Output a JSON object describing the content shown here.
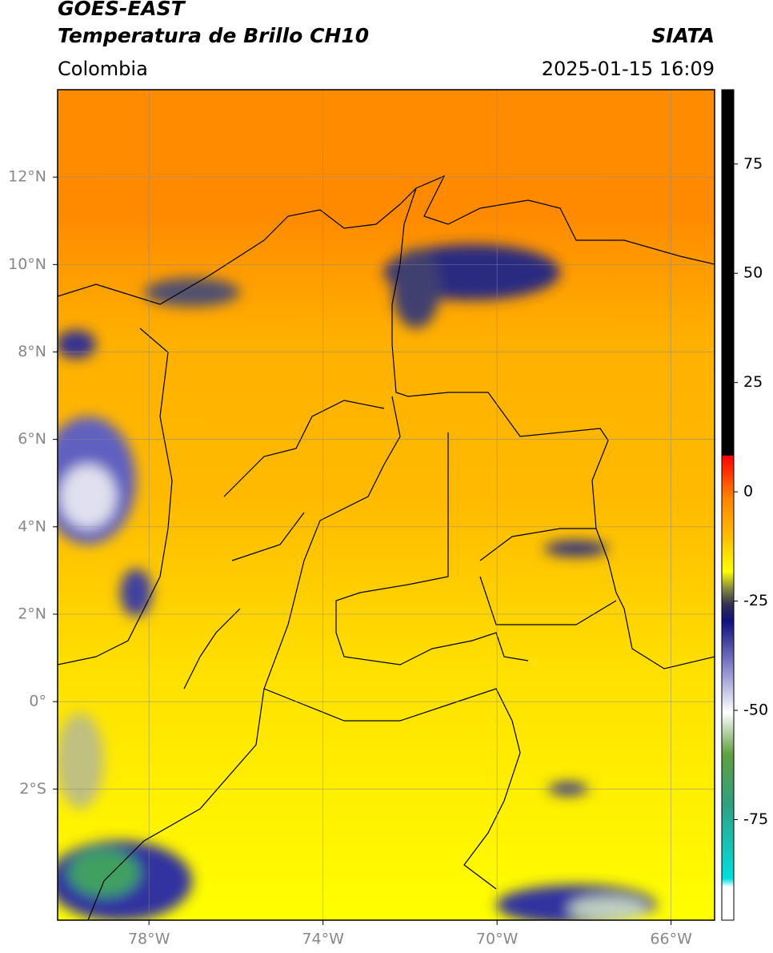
{
  "header": {
    "title": "GOES-EAST",
    "subtitle": "Temperatura de Brillo CH10",
    "source": "SIATA",
    "region": "Colombia",
    "timestamp": "2025-01-15 16:09"
  },
  "map": {
    "xlim": [
      -80.1,
      -65
    ],
    "ylim": [
      -5,
      14
    ],
    "xticks": [
      {
        "value": -78,
        "label": "78°W"
      },
      {
        "value": -74,
        "label": "74°W"
      },
      {
        "value": -70,
        "label": "70°W"
      },
      {
        "value": -66,
        "label": "66°W"
      }
    ],
    "yticks": [
      {
        "value": 12,
        "label": "12°N"
      },
      {
        "value": 10,
        "label": "10°N"
      },
      {
        "value": 8,
        "label": "8°N"
      },
      {
        "value": 6,
        "label": "6°N"
      },
      {
        "value": 4,
        "label": "4°N"
      },
      {
        "value": 2,
        "label": "2°N"
      },
      {
        "value": 0,
        "label": "0°"
      },
      {
        "value": -2,
        "label": "2°S"
      }
    ]
  },
  "colorbar": {
    "lim": [
      -98,
      92
    ],
    "ticks": [
      75,
      50,
      25,
      0,
      -25,
      -50,
      -75
    ]
  }
}
